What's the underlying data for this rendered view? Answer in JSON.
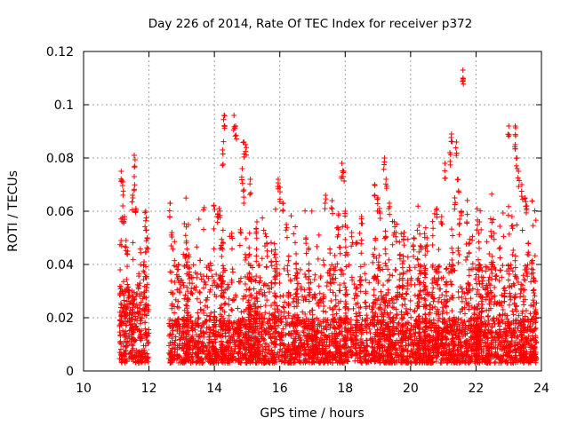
{
  "chart_data": {
    "type": "scatter",
    "title": "Day 226 of 2014, Rate Of TEC Index for receiver p372",
    "xlabel": "GPS time / hours",
    "ylabel": "ROTI / TECUs",
    "xlim": [
      10,
      24
    ],
    "ylim": [
      0,
      0.12
    ],
    "xticks": [
      "10",
      "12",
      "14",
      "16",
      "18",
      "20",
      "22",
      "24"
    ],
    "yticks": [
      "0",
      "0.02",
      "0.04",
      "0.06",
      "0.08",
      "0.1",
      "0.12"
    ],
    "grid": true,
    "marker": "+",
    "color": "#ff0000",
    "series": [
      {
        "name": "ROTI",
        "segments": [
          {
            "x0": 11.1,
            "x1": 12.0,
            "base": 0.02,
            "peak": 0.045
          },
          {
            "x0": 12.6,
            "x1": 23.85,
            "base": 0.012,
            "peak": 0.05
          }
        ],
        "points": [
          [
            11.15,
            0.075
          ],
          [
            11.2,
            0.071
          ],
          [
            11.2,
            0.062
          ],
          [
            11.25,
            0.058
          ],
          [
            11.3,
            0.049
          ],
          [
            11.35,
            0.045
          ],
          [
            11.55,
            0.081
          ],
          [
            11.55,
            0.073
          ],
          [
            11.5,
            0.066
          ],
          [
            11.6,
            0.061
          ],
          [
            11.9,
            0.06
          ],
          [
            11.95,
            0.05
          ],
          [
            11.85,
            0.041
          ],
          [
            12.65,
            0.063
          ],
          [
            12.7,
            0.052
          ],
          [
            12.9,
            0.04
          ],
          [
            13.1,
            0.043
          ],
          [
            13.3,
            0.035
          ],
          [
            14.1,
            0.059
          ],
          [
            14.15,
            0.061
          ],
          [
            14.3,
            0.096
          ],
          [
            14.3,
            0.092
          ],
          [
            14.25,
            0.083
          ],
          [
            14.6,
            0.096
          ],
          [
            14.65,
            0.092
          ],
          [
            14.9,
            0.086
          ],
          [
            14.95,
            0.085
          ],
          [
            14.85,
            0.076
          ],
          [
            14.9,
            0.068
          ],
          [
            14.8,
            0.053
          ],
          [
            15.1,
            0.072
          ],
          [
            15.3,
            0.056
          ],
          [
            15.6,
            0.048
          ],
          [
            15.75,
            0.045
          ],
          [
            15.95,
            0.072
          ],
          [
            16.0,
            0.069
          ],
          [
            16.1,
            0.063
          ],
          [
            16.2,
            0.055
          ],
          [
            16.5,
            0.044
          ],
          [
            16.8,
            0.05
          ],
          [
            17.4,
            0.066
          ],
          [
            17.6,
            0.064
          ],
          [
            17.8,
            0.059
          ],
          [
            17.9,
            0.078
          ],
          [
            17.95,
            0.075
          ],
          [
            18.0,
            0.06
          ],
          [
            18.2,
            0.052
          ],
          [
            18.5,
            0.058
          ],
          [
            18.9,
            0.07
          ],
          [
            19.0,
            0.065
          ],
          [
            19.05,
            0.061
          ],
          [
            19.2,
            0.08
          ],
          [
            19.25,
            0.072
          ],
          [
            19.35,
            0.063
          ],
          [
            19.5,
            0.056
          ],
          [
            19.8,
            0.052
          ],
          [
            20.1,
            0.05
          ],
          [
            20.3,
            0.047
          ],
          [
            20.5,
            0.05
          ],
          [
            20.8,
            0.061
          ],
          [
            20.95,
            0.058
          ],
          [
            21.05,
            0.078
          ],
          [
            21.2,
            0.082
          ],
          [
            21.25,
            0.089
          ],
          [
            21.4,
            0.086
          ],
          [
            21.45,
            0.072
          ],
          [
            21.35,
            0.065
          ],
          [
            21.5,
            0.057
          ],
          [
            21.6,
            0.113
          ],
          [
            21.6,
            0.11
          ],
          [
            21.55,
            0.06
          ],
          [
            21.8,
            0.048
          ],
          [
            22.1,
            0.04
          ],
          [
            22.6,
            0.038
          ],
          [
            23.0,
            0.092
          ],
          [
            23.2,
            0.092
          ],
          [
            23.2,
            0.085
          ],
          [
            23.25,
            0.08
          ],
          [
            23.3,
            0.075
          ],
          [
            23.1,
            0.058
          ],
          [
            23.4,
            0.07
          ],
          [
            23.5,
            0.065
          ],
          [
            23.55,
            0.062
          ],
          [
            23.6,
            0.048
          ],
          [
            23.7,
            0.041
          ],
          [
            23.75,
            0.035
          ]
        ]
      }
    ]
  }
}
